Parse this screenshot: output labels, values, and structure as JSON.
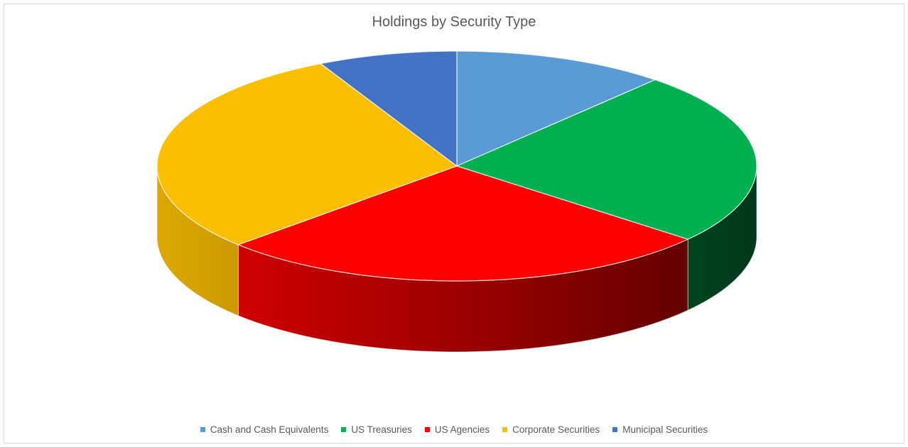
{
  "chart_data": {
    "type": "pie",
    "variant": "3d",
    "title": "Holdings by Security Type",
    "legend_position": "bottom",
    "categories": [
      "Cash and Cash Equivalents",
      "US Treasuries",
      "US Agencies",
      "Corporate Securities",
      "Municipal Securities"
    ],
    "values": [
      11.5,
      24.5,
      27,
      29.5,
      7.5
    ],
    "colors": [
      "#5b9bd5",
      "#00b050",
      "#ff0000",
      "#fbbf00",
      "#4472c4"
    ]
  }
}
